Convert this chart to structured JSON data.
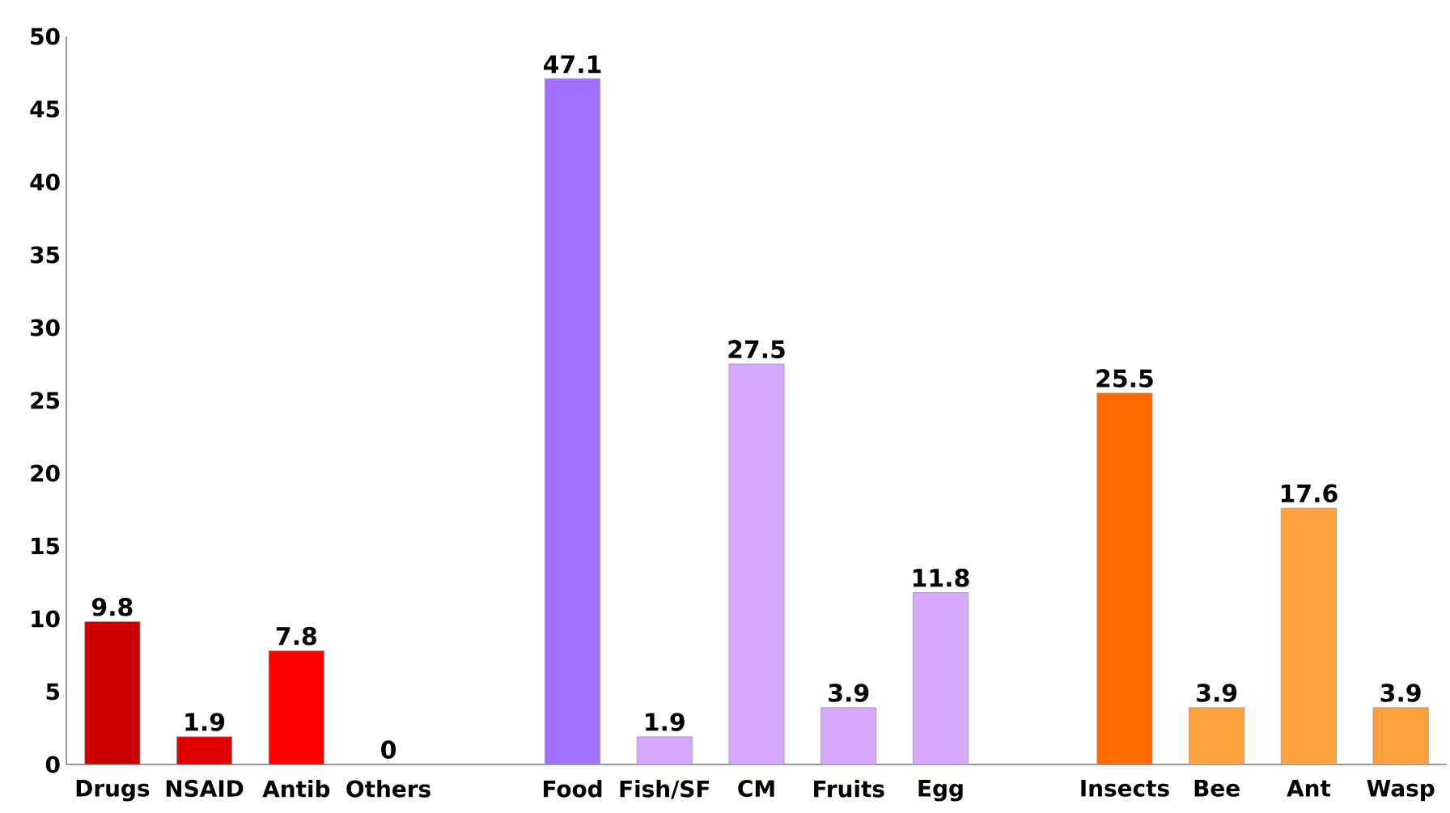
{
  "chart_data": {
    "type": "bar",
    "categories": [
      "Drugs",
      "NSAID",
      "Antib",
      "Others",
      null,
      "Food",
      "Fish/SF",
      "CM",
      "Fruits",
      "Egg",
      null,
      "Insects",
      "Bee",
      "Ant",
      "Wasp"
    ],
    "values": [
      9.8,
      1.9,
      7.8,
      0,
      null,
      47.1,
      1.9,
      27.5,
      3.9,
      11.8,
      null,
      25.5,
      3.9,
      17.6,
      3.9
    ],
    "colors": [
      "#cc0000",
      "#e00000",
      "#ff0000",
      "#ff0000",
      "#ffffff",
      "#a070ff",
      "#d8a8ff",
      "#d8a8ff",
      "#d8a8ff",
      "#d8a8ff",
      "#ffffff",
      "#ff6a00",
      "#ffa040",
      "#ffa040",
      "#ffa040"
    ],
    "ylim": [
      0,
      50
    ],
    "yticks": [
      0,
      5,
      10,
      15,
      20,
      25,
      30,
      35,
      40,
      45,
      50
    ],
    "data_labels": true
  }
}
